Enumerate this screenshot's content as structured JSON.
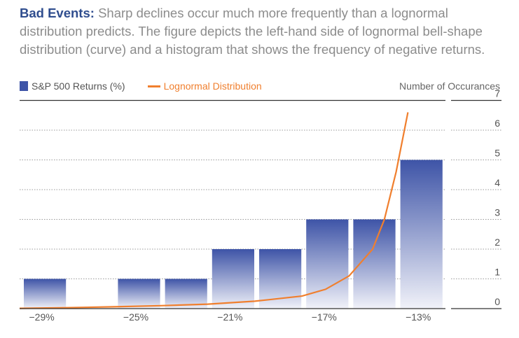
{
  "caption": {
    "lead": "Bad Events:",
    "text": "Sharp declines occur much more frequently than a lognormal distribution predicts. The figure depicts the left-hand side of lognormal bell-shape distribution (curve) and a histogram that shows the frequency of negative returns."
  },
  "legend": {
    "bars_label": "S&P 500 Returns (%)",
    "curve_label": "Lognormal Distribution",
    "y_axis_title": "Number of Occurances"
  },
  "colors": {
    "bar_top": "#3e54a7",
    "bar_bottom": "#f1f2f9",
    "curve": "#f07f2e",
    "title": "#2f4d8e"
  },
  "chart_data": {
    "type": "bar",
    "title": "",
    "xlabel": "",
    "ylabel": "Number of Occurances",
    "ylim": [
      0,
      7
    ],
    "y_ticks": [
      "0",
      "1",
      "2",
      "3",
      "4",
      "5",
      "6",
      "7"
    ],
    "x_tick_labels": [
      "−29%",
      "−25%",
      "−21%",
      "−17%",
      "−13%"
    ],
    "series": [
      {
        "name": "S&P 500 Returns (%)",
        "type": "bar",
        "categories": [
          "−29%",
          "−28%",
          "−27%",
          "−26%",
          "−25%",
          "−24%",
          "−23%",
          "−22%",
          "−21%",
          "−20%",
          "−19%",
          "−18%",
          "−17%",
          "−16%",
          "−15%",
          "−14%",
          "−13%"
        ],
        "values": [
          1,
          0,
          0,
          0,
          1,
          0,
          1,
          0,
          2,
          0,
          2,
          0,
          3,
          0,
          3,
          0,
          5
        ]
      },
      {
        "name": "Lognormal Distribution",
        "type": "line",
        "x": [
          -29,
          -27,
          -25,
          -23,
          -21,
          -19,
          -17,
          -16,
          -15,
          -14,
          -13.5,
          -13,
          -12.5
        ],
        "y": [
          0.01,
          0.03,
          0.06,
          0.1,
          0.15,
          0.25,
          0.42,
          0.65,
          1.1,
          2.0,
          3.0,
          4.6,
          6.6
        ]
      }
    ],
    "grid": true,
    "legend_position": "top"
  }
}
